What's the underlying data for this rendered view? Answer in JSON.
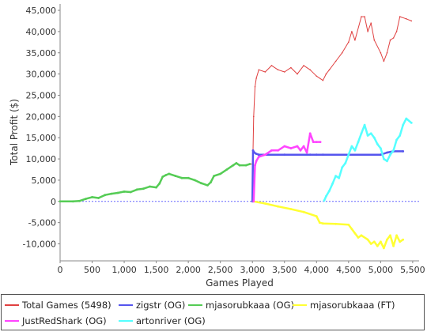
{
  "chart_data": {
    "type": "line",
    "xlabel": "Games Played",
    "ylabel": "Total Profit ($)",
    "xlim": [
      0,
      5600
    ],
    "ylim": [
      -14000,
      46500
    ],
    "xticks": [
      0,
      500,
      1000,
      1500,
      2000,
      2500,
      3000,
      3500,
      4000,
      4500,
      5000,
      5500
    ],
    "xtick_labels": [
      "0",
      "500",
      "1,000",
      "1,500",
      "2,000",
      "2,500",
      "3,000",
      "3,500",
      "4,000",
      "4,500",
      "5,000",
      "5,500"
    ],
    "yticks": [
      -10000,
      -5000,
      0,
      5000,
      10000,
      15000,
      20000,
      25000,
      30000,
      35000,
      40000,
      45000
    ],
    "ytick_labels": [
      "-10,000",
      "-5,000",
      "0",
      "5,000",
      "10,000",
      "15,000",
      "20,000",
      "25,000",
      "30,000",
      "35,000",
      "40,000",
      "45,000"
    ],
    "legend_position": "bottom",
    "zero_line_color": "#6666ff",
    "series": [
      {
        "name": "Total Games (5498)",
        "color": "#e04040",
        "x": [
          0,
          200,
          300,
          400,
          500,
          600,
          700,
          800,
          900,
          1000,
          1100,
          1200,
          1300,
          1400,
          1500,
          1550,
          1600,
          1650,
          1700,
          1800,
          1900,
          2000,
          2100,
          2200,
          2300,
          2350,
          2400,
          2500,
          2600,
          2700,
          2750,
          2800,
          2900,
          2960,
          3000,
          3010,
          3020,
          3040,
          3060,
          3100,
          3200,
          3300,
          3400,
          3500,
          3600,
          3700,
          3800,
          3900,
          4000,
          4100,
          4150,
          4200,
          4300,
          4400,
          4500,
          4550,
          4600,
          4700,
          4750,
          4800,
          4850,
          4900,
          5000,
          5050,
          5100,
          5150,
          5200,
          5250,
          5300,
          5400,
          5480
        ],
        "values": [
          0,
          0,
          100,
          600,
          1000,
          800,
          1500,
          1800,
          2000,
          2300,
          2200,
          2800,
          3000,
          3500,
          3300,
          4200,
          5800,
          6200,
          6500,
          6000,
          5500,
          5500,
          5000,
          4300,
          3800,
          4500,
          6000,
          6500,
          7500,
          8500,
          9000,
          8500,
          8500,
          8800,
          8800,
          12000,
          20000,
          27000,
          29000,
          31000,
          30500,
          32000,
          31000,
          30500,
          31500,
          30000,
          32000,
          31000,
          29500,
          28500,
          30000,
          31000,
          33000,
          35000,
          37500,
          40000,
          38000,
          43500,
          43500,
          40000,
          42000,
          38000,
          35000,
          33000,
          35000,
          38000,
          38500,
          40000,
          43500,
          43000,
          42500
        ]
      },
      {
        "name": "zigstr (OG)",
        "color": "#5555ee",
        "x": [
          3000,
          3010,
          3030,
          3060,
          3100,
          3500,
          3900,
          4000,
          4100,
          4500,
          5000,
          5100,
          5200,
          5350
        ],
        "values": [
          0,
          12000,
          11500,
          11200,
          11000,
          11000,
          11000,
          11000,
          11000,
          11000,
          11000,
          11500,
          11800,
          11800
        ]
      },
      {
        "name": "mjasorubkaaa (OG)",
        "color": "#55cc55",
        "x": [
          0,
          200,
          300,
          400,
          500,
          600,
          700,
          800,
          900,
          1000,
          1100,
          1200,
          1300,
          1400,
          1500,
          1550,
          1600,
          1650,
          1700,
          1800,
          1900,
          2000,
          2100,
          2200,
          2300,
          2350,
          2400,
          2500,
          2600,
          2700,
          2750,
          2800,
          2900,
          2960
        ],
        "values": [
          0,
          0,
          100,
          600,
          1000,
          800,
          1500,
          1800,
          2000,
          2300,
          2200,
          2800,
          3000,
          3500,
          3300,
          4200,
          5800,
          6200,
          6500,
          6000,
          5500,
          5500,
          5000,
          4300,
          3800,
          4500,
          6000,
          6500,
          7500,
          8500,
          9000,
          8500,
          8500,
          8800
        ]
      },
      {
        "name": "mjasorubkaaa (FT)",
        "color": "#ffff33",
        "x": [
          3020,
          3200,
          3400,
          3600,
          3800,
          4000,
          4050,
          4100,
          4300,
          4500,
          4550,
          4600,
          4650,
          4700,
          4800,
          4850,
          4900,
          4950,
          5000,
          5050,
          5100,
          5150,
          5200,
          5250,
          5300,
          5350
        ],
        "values": [
          0,
          -500,
          -1200,
          -1800,
          -2500,
          -3500,
          -5000,
          -5200,
          -5300,
          -5500,
          -6500,
          -7500,
          -8500,
          -8000,
          -9000,
          -10000,
          -9500,
          -10500,
          -9500,
          -11000,
          -9000,
          -8000,
          -10500,
          -8000,
          -9500,
          -9000
        ]
      },
      {
        "name": "JustRedShark (OG)",
        "color": "#ff44ff",
        "x": [
          3020,
          3040,
          3060,
          3100,
          3200,
          3300,
          3400,
          3500,
          3600,
          3700,
          3750,
          3800,
          3850,
          3900,
          3950,
          4000,
          4060
        ],
        "values": [
          0,
          8500,
          9500,
          10500,
          11000,
          12000,
          12000,
          13000,
          12500,
          13000,
          12000,
          13000,
          11500,
          16000,
          14000,
          14000,
          14000
        ]
      },
      {
        "name": "artonriver (OG)",
        "color": "#55ffff",
        "x": [
          4120,
          4150,
          4200,
          4250,
          4300,
          4350,
          4400,
          4450,
          4500,
          4550,
          4600,
          4650,
          4700,
          4750,
          4800,
          4850,
          4900,
          4950,
          5000,
          5050,
          5100,
          5150,
          5200,
          5250,
          5300,
          5350,
          5400,
          5480
        ],
        "values": [
          200,
          1200,
          2500,
          4200,
          6000,
          5500,
          8000,
          9000,
          11000,
          13000,
          12000,
          14000,
          16000,
          18000,
          15500,
          16000,
          15000,
          13500,
          12500,
          10000,
          9500,
          11000,
          12000,
          14500,
          15500,
          18000,
          19500,
          18500
        ]
      }
    ],
    "legend_entries": [
      {
        "label": "Total Games (5498)",
        "color": "#e04040"
      },
      {
        "label": "zigstr (OG)",
        "color": "#5555ee"
      },
      {
        "label": "mjasorubkaaa (OG)",
        "color": "#55cc55"
      },
      {
        "label": "mjasorubkaaa (FT)",
        "color": "#ffff33"
      },
      {
        "label": "JustRedShark (OG)",
        "color": "#ff44ff"
      },
      {
        "label": "artonriver (OG)",
        "color": "#55ffff"
      }
    ]
  }
}
